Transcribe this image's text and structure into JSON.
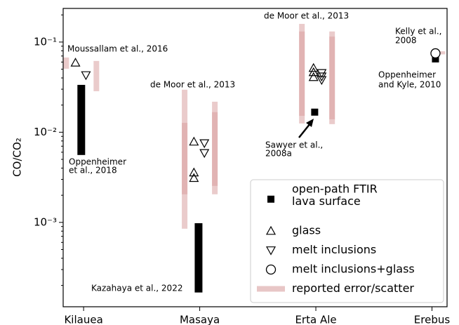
{
  "chart_data": {
    "type": "range-scatter",
    "ylabel": "CO/CO₂",
    "log_y": true,
    "xlim": [
      -0.176,
      3.13
    ],
    "ylim": [
      0.000116,
      0.236
    ],
    "xticks": [
      {
        "value": 0,
        "label": "Kilauea"
      },
      {
        "value": 1,
        "label": "Masaya"
      },
      {
        "value": 2,
        "label": "Erta Ale"
      },
      {
        "value": 3,
        "label": "Erebus"
      }
    ],
    "yticks": [
      {
        "value": 0.001,
        "label": "10⁻³"
      },
      {
        "value": 0.01,
        "label": "10⁻²"
      },
      {
        "value": 0.1,
        "label": "10⁻¹"
      }
    ],
    "yminorticks": [
      0.0002,
      0.0003,
      0.0004,
      0.0005,
      0.0006,
      0.0007,
      0.0008,
      0.0009,
      0.002,
      0.003,
      0.004,
      0.005,
      0.006,
      0.007,
      0.008,
      0.009,
      0.02,
      0.03,
      0.04,
      0.05,
      0.06,
      0.07,
      0.08,
      0.09,
      0.2
    ],
    "legend_position": "lower right",
    "series": [
      {
        "name": [
          "open-path FTIR",
          "lava surface"
        ],
        "marker": "square",
        "color": "#000000",
        "x": [
          1.99,
          3.03
        ],
        "values": [
          0.0167,
          0.065
        ],
        "ranges": {
          "x": [
            -0.02,
            0.99
          ],
          "low": [
            0.00559,
            0.000167
          ],
          "high": [
            0.0335,
            0.00098
          ]
        }
      },
      {
        "name": [
          "glass"
        ],
        "marker": "triangle-up",
        "color": "#000000",
        "x": [
          -0.07,
          0.95,
          0.95,
          0.95,
          1.98,
          1.98,
          1.98
        ],
        "values": [
          0.059,
          0.00785,
          0.00357,
          0.0031,
          0.0515,
          0.0462,
          0.0408
        ]
      },
      {
        "name": [
          "melt inclusions"
        ],
        "marker": "triangle-down",
        "color": "#000000",
        "x": [
          0.02,
          1.04,
          1.04,
          2.05,
          2.05,
          2.05
        ],
        "values": [
          0.043,
          0.00757,
          0.00589,
          0.0454,
          0.0416,
          0.038
        ]
      },
      {
        "name": [
          "melt inclusions+glass"
        ],
        "marker": "circle",
        "color": "#000000",
        "x": [
          3.03
        ],
        "values": [
          0.075
        ]
      },
      {
        "name": [
          "reported error/scatter"
        ],
        "marker": "band",
        "color": "#d9a0a0",
        "ranges": {
          "x": [
            -0.15,
            0.11,
            0.87,
            0.87,
            1.13,
            1.13,
            1.88,
            1.88,
            2.14,
            2.14,
            3.09
          ],
          "low": [
            0.0506,
            0.0285,
            0.000851,
            0.00205,
            0.00205,
            0.00254,
            0.0125,
            0.0152,
            0.0123,
            0.0139,
            0.073
          ],
          "high": [
            0.0674,
            0.0617,
            0.0296,
            0.0127,
            0.0218,
            0.0167,
            0.159,
            0.131,
            0.131,
            0.115,
            0.079
          ]
        }
      }
    ],
    "annotations": [
      [
        "Moussallam et al., 2016"
      ],
      [
        "Oppenheimer",
        "et al., 2018"
      ],
      [
        "de Moor et al., 2013"
      ],
      [
        "Kazahaya et al., 2022"
      ],
      [
        "de Moor et al., 2013"
      ],
      [
        "Sawyer et al.,",
        "2008a"
      ],
      [
        "Kelly et al.,",
        "2008"
      ],
      [
        "Oppenheimer",
        "and Kyle, 2010"
      ]
    ]
  }
}
